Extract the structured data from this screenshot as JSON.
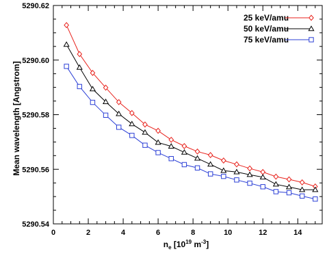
{
  "chart_data": {
    "type": "line",
    "xlabel": "n",
    "xlabel_sub": "e",
    "xlabel_unit_pre": " [10",
    "xlabel_unit_sup1": "19",
    "xlabel_unit_mid": " m",
    "xlabel_unit_sup2": "-3",
    "xlabel_unit_post": "]",
    "ylabel": "Mean wavelength [Angstrom]",
    "xlim": [
      0,
      15.4
    ],
    "ylim": [
      5290.54,
      5290.62
    ],
    "xticks": [
      0,
      2,
      4,
      6,
      8,
      10,
      12,
      14
    ],
    "xtick_labels": [
      "0",
      "2",
      "4",
      "6",
      "8",
      "10",
      "12",
      "14"
    ],
    "yticks": [
      5290.54,
      5290.56,
      5290.58,
      5290.6,
      5290.62
    ],
    "ytick_labels": [
      "5290.54",
      "5290.56",
      "5290.58",
      "5290.60",
      "5290.62"
    ],
    "grid": false,
    "legend_position": "top-right",
    "x": [
      0.75,
      1.5,
      2.25,
      3.0,
      3.75,
      4.5,
      5.25,
      6.0,
      6.75,
      7.5,
      8.25,
      9.0,
      9.75,
      10.5,
      11.25,
      12.0,
      12.75,
      13.5,
      14.25,
      15.0
    ],
    "series": [
      {
        "name": "25 keV/amu",
        "color": "#e8221c",
        "marker": "diamond",
        "values": [
          5290.6128,
          5290.6022,
          5290.5953,
          5290.5899,
          5290.5846,
          5290.5806,
          5290.5764,
          5290.5741,
          5290.5708,
          5290.5685,
          5290.5665,
          5290.5652,
          5290.5632,
          5290.5618,
          5290.5603,
          5290.559,
          5290.5573,
          5290.5563,
          5290.5552,
          5290.5537
        ]
      },
      {
        "name": "50 keV/amu",
        "color": "#000000",
        "marker": "triangle",
        "values": [
          5290.6057,
          5290.5973,
          5290.5894,
          5290.5847,
          5290.5803,
          5290.5766,
          5290.5735,
          5290.5698,
          5290.5684,
          5290.5662,
          5290.564,
          5290.5618,
          5290.5595,
          5290.559,
          5290.558,
          5290.5571,
          5290.5545,
          5290.5535,
          5290.5525,
          5290.5525
        ]
      },
      {
        "name": "75 keV/amu",
        "color": "#2b3fd6",
        "marker": "square",
        "values": [
          5290.5977,
          5290.5903,
          5290.5845,
          5290.5798,
          5290.5754,
          5290.5724,
          5290.5688,
          5290.5661,
          5290.5639,
          5290.5617,
          5290.5605,
          5290.5583,
          5290.5574,
          5290.5561,
          5290.5549,
          5290.5536,
          5290.5518,
          5290.5514,
          5290.5502,
          5290.5491
        ]
      }
    ]
  }
}
